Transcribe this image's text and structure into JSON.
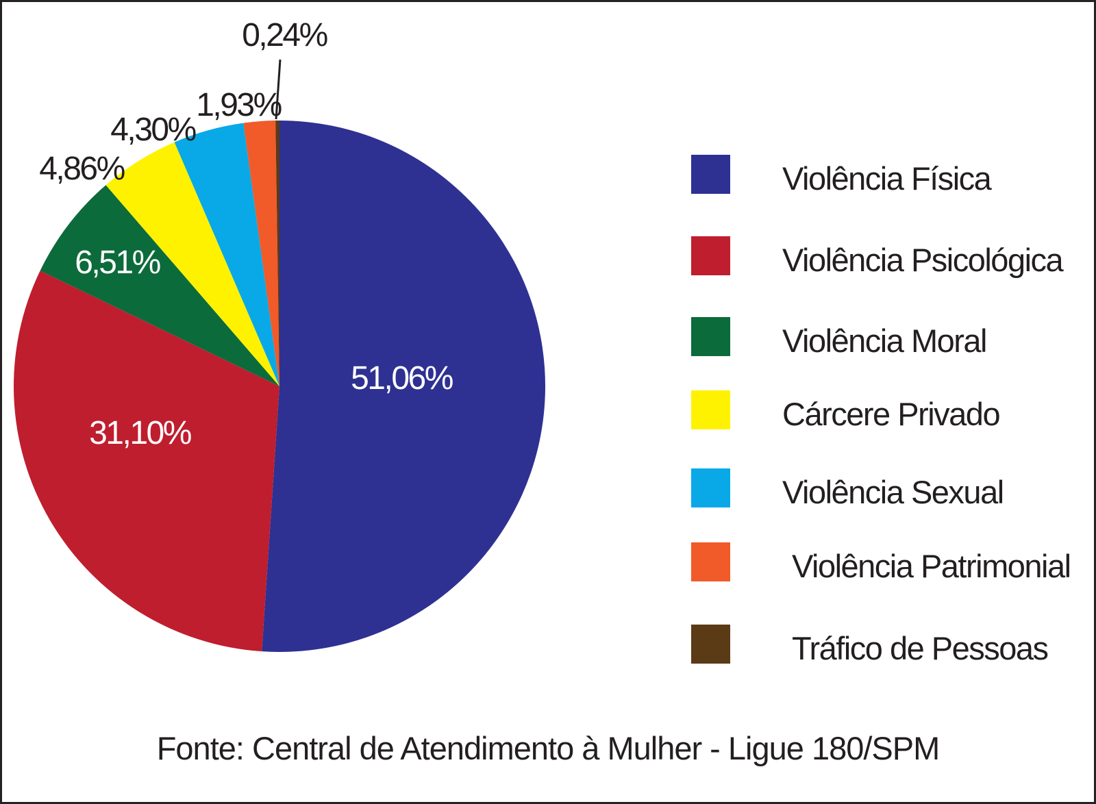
{
  "figure": {
    "caption": "Fonte: Central de Atendimento à Mulher - Ligue 180/SPM"
  },
  "chart_data": {
    "type": "pie",
    "unit": "%",
    "direction": "clockwise",
    "start_angle": "12 o'clock",
    "legend_position": "right",
    "inside_label_color": "#FFFFFF",
    "outside_label_color": "#231F20",
    "slices": [
      {
        "label": "Violência Física",
        "value": 51.06,
        "value_label": "51,06%",
        "color": "#2E3192"
      },
      {
        "label": "Violência Psicológica",
        "value": 31.1,
        "value_label": "31,10%",
        "color": "#BF1E2E"
      },
      {
        "label": "Violência Moral",
        "value": 6.51,
        "value_label": "6,51%",
        "color": "#0C6B3B"
      },
      {
        "label": "Cárcere Privado",
        "value": 4.86,
        "value_label": "4,86%",
        "color": "#FFF200"
      },
      {
        "label": "Violência Sexual",
        "value": 4.3,
        "value_label": "4,30%",
        "color": "#09A9E8"
      },
      {
        "label": "Violência Patrimonial",
        "value": 1.93,
        "value_label": "1,93%",
        "color": "#F15A29"
      },
      {
        "label": "Tráfico de Pessoas",
        "value": 0.24,
        "value_label": "0,24%",
        "color": "#5B3A16"
      }
    ]
  }
}
